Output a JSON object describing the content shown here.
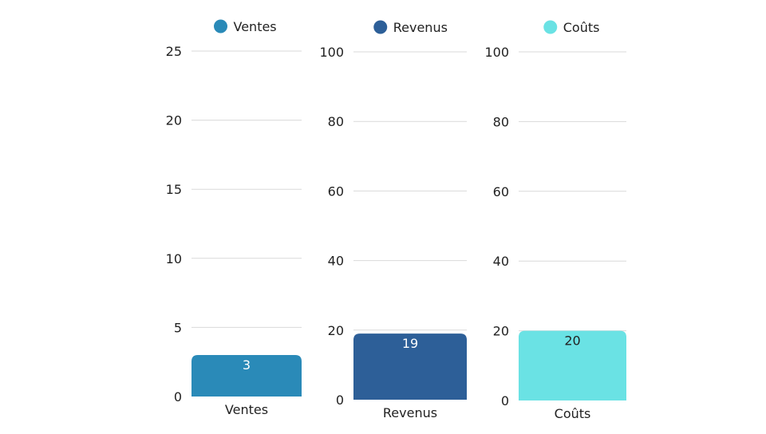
{
  "chart_data": [
    {
      "type": "bar",
      "title": "",
      "xlabel": "",
      "ylabel": "",
      "legend_position": "top",
      "grid": true,
      "ylim": [
        0,
        25
      ],
      "yticks": [
        0,
        5,
        10,
        15,
        20,
        25
      ],
      "categories": [
        "Ventes"
      ],
      "series": [
        {
          "name": "Ventes",
          "values": [
            3
          ],
          "color": "#2a8ab8"
        }
      ],
      "data_label_color": "#ffffff"
    },
    {
      "type": "bar",
      "title": "",
      "xlabel": "",
      "ylabel": "",
      "legend_position": "top",
      "grid": true,
      "ylim": [
        0,
        100
      ],
      "yticks": [
        0,
        20,
        40,
        60,
        80,
        100
      ],
      "categories": [
        "Revenus"
      ],
      "series": [
        {
          "name": "Revenus",
          "values": [
            19
          ],
          "color": "#2d5f98"
        }
      ],
      "data_label_color": "#ffffff"
    },
    {
      "type": "bar",
      "title": "",
      "xlabel": "",
      "ylabel": "",
      "legend_position": "top",
      "grid": true,
      "ylim": [
        0,
        100
      ],
      "yticks": [
        0,
        20,
        40,
        60,
        80,
        100
      ],
      "categories": [
        "Coûts"
      ],
      "series": [
        {
          "name": "Coûts",
          "values": [
            20
          ],
          "color": "#6ae2e4"
        }
      ],
      "data_label_color": "#222222"
    }
  ],
  "colors": {
    "gridline": "#d9d9d9",
    "axis_text": "#222222"
  }
}
